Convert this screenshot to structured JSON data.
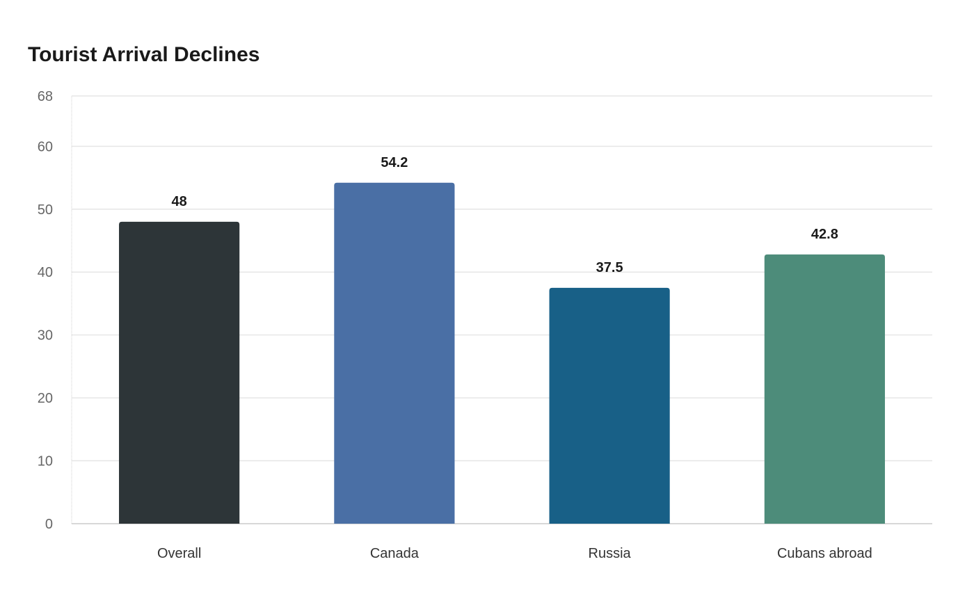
{
  "chart_data": {
    "type": "bar",
    "title": "Tourist Arrival Declines",
    "xlabel": "",
    "ylabel": "",
    "categories": [
      "Overall",
      "Canada",
      "Russia",
      "Cubans abroad"
    ],
    "values": [
      48,
      54.2,
      37.5,
      42.8
    ],
    "colors": [
      "#2d3538",
      "#4a6fa5",
      "#186087",
      "#4d8c7a"
    ],
    "ylim": [
      0,
      68
    ],
    "yticks": [
      0,
      10,
      20,
      30,
      40,
      50,
      60,
      68
    ],
    "grid": true,
    "legend": "none",
    "data_labels": true
  }
}
